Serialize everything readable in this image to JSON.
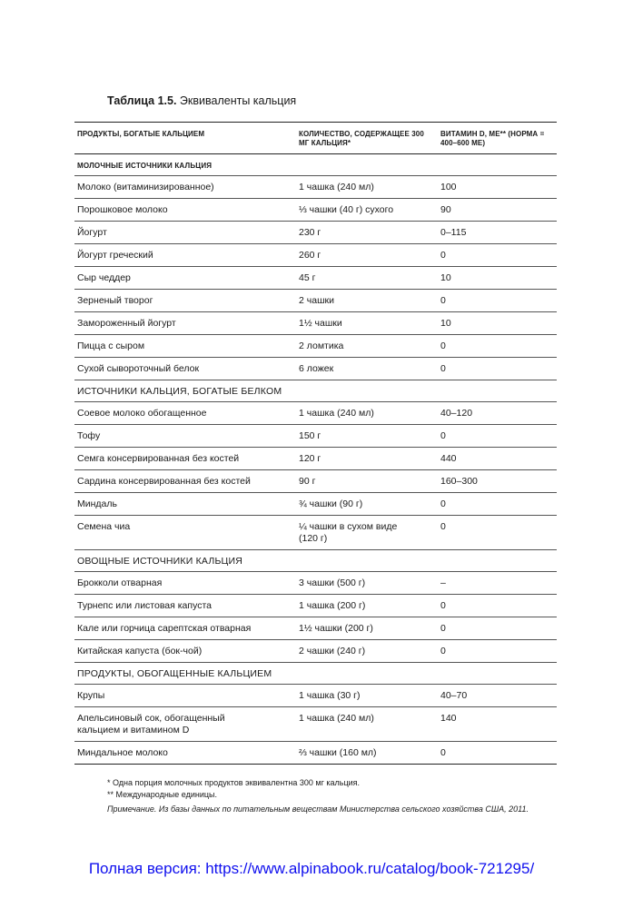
{
  "title": {
    "label": "Таблица 1.5.",
    "text": "Эквиваленты кальция"
  },
  "headers": [
    "ПРОДУКТЫ, БОГАТЫЕ КАЛЬЦИЕМ",
    "КОЛИЧЕСТВО, СОДЕРЖАЩЕЕ 300 МГ КАЛЬЦИЯ*",
    "ВИТАМИН D, МЕ** (НОРМА = 400–600 МЕ)"
  ],
  "sections": [
    {
      "title": "МОЛОЧНЫЕ ИСТОЧНИКИ КАЛЬЦИЯ",
      "bold": true,
      "rows": [
        [
          "Молоко (витаминизированное)",
          "1 чашка (240 мл)",
          "100"
        ],
        [
          "Порошковое молоко",
          "⅓ чашки (40 г) сухого",
          "90"
        ],
        [
          "Йогурт",
          "230 г",
          "0–115"
        ],
        [
          "Йогурт греческий",
          "260 г",
          "0"
        ],
        [
          "Сыр чеддер",
          "45 г",
          "10"
        ],
        [
          "Зерненый творог",
          "2 чашки",
          "0"
        ],
        [
          "Замороженный йогурт",
          "1½ чашки",
          "10"
        ],
        [
          "Пицца с сыром",
          "2 ломтика",
          "0"
        ],
        [
          "Сухой сывороточный белок",
          "6 ложек",
          "0"
        ]
      ]
    },
    {
      "title": "ИСТОЧНИКИ КАЛЬЦИЯ, БОГАТЫЕ БЕЛКОМ",
      "bold": false,
      "rows": [
        [
          "Соевое молоко обогащенное",
          "1 чашка (240 мл)",
          "40–120"
        ],
        [
          "Тофу",
          "150 г",
          "0"
        ],
        [
          "Семга консервированная без костей",
          "120 г",
          "440"
        ],
        [
          "Сардина консервированная без костей",
          "90 г",
          "160–300"
        ],
        [
          "Миндаль",
          "¾ чашки (90 г)",
          "0"
        ],
        [
          "Семена чиа",
          "¼ чашки в сухом виде (120 г)",
          "0"
        ]
      ]
    },
    {
      "title": "ОВОЩНЫЕ ИСТОЧНИКИ КАЛЬЦИЯ",
      "bold": false,
      "rows": [
        [
          "Брокколи отварная",
          "3 чашки (500 г)",
          "–"
        ],
        [
          "Турнепс или листовая капуста",
          "1 чашка (200 г)",
          "0"
        ],
        [
          "Кале или горчица сарептская отварная",
          "1½ чашки (200 г)",
          "0"
        ],
        [
          "Китайская капуста (бок-чой)",
          "2 чашки (240 г)",
          "0"
        ]
      ]
    },
    {
      "title": "ПРОДУКТЫ, ОБОГАЩЕННЫЕ КАЛЬЦИЕМ",
      "bold": false,
      "rows": [
        [
          "Крупы",
          "1 чашка (30 г)",
          "40–70"
        ],
        [
          "Апельсиновый сок, обогащенный кальцием и витамином D",
          "1 чашка (240 мл)",
          "140"
        ],
        [
          "Миндальное молоко",
          "⅔ чашки (160 мл)",
          "0"
        ]
      ]
    }
  ],
  "footnotes": [
    "* Одна порция молочных продуктов эквивалентна 300 мг кальция.",
    "** Международные единицы."
  ],
  "note": "Примечание. Из базы данных по питательным веществам Министерства сельского хозяйства США, 2011.",
  "link": "Полная версия: https://www.alpinabook.ru/catalog/book-721295/"
}
